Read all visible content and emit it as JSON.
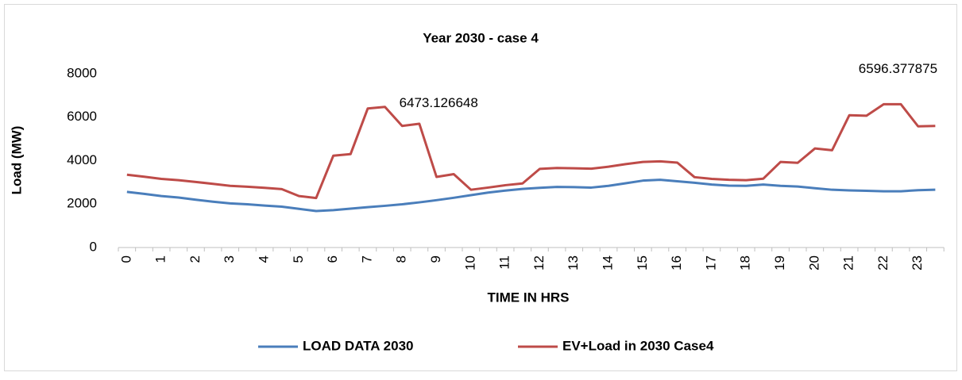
{
  "chart_data": {
    "type": "line",
    "title": "Year 2030 - case 4",
    "x_label": "TIME IN HRS",
    "y_label": "Load (MW)",
    "categories": [
      "0",
      null,
      "1",
      null,
      "2",
      null,
      "3",
      null,
      "4",
      null,
      "5",
      null,
      "6",
      null,
      "7",
      null,
      "8",
      null,
      "9",
      null,
      "10",
      null,
      "11",
      null,
      "12",
      null,
      "13",
      null,
      "14",
      null,
      "15",
      null,
      "16",
      null,
      "17",
      null,
      "18",
      null,
      "19",
      null,
      "20",
      null,
      "21",
      null,
      "22",
      null,
      "23",
      null
    ],
    "series": [
      {
        "name": "LOAD DATA 2030",
        "color": "#4a7ebb",
        "values": [
          2560,
          2470,
          2370,
          2300,
          2200,
          2110,
          2030,
          1990,
          1930,
          1880,
          1780,
          1680,
          1720,
          1790,
          1860,
          1920,
          1990,
          2080,
          2180,
          2290,
          2410,
          2530,
          2620,
          2700,
          2750,
          2790,
          2780,
          2760,
          2840,
          2960,
          3080,
          3120,
          3050,
          2980,
          2900,
          2850,
          2840,
          2900,
          2840,
          2810,
          2730,
          2660,
          2630,
          2610,
          2590,
          2590,
          2640,
          2660
        ]
      },
      {
        "name": "EV+Load in 2030 Case4",
        "color": "#be4b48",
        "values": [
          3350,
          3260,
          3160,
          3100,
          3020,
          2930,
          2840,
          2800,
          2750,
          2690,
          2370,
          2280,
          4230,
          4300,
          6400,
          6473.126648,
          5600,
          5700,
          3250,
          3380,
          2660,
          2760,
          2870,
          2950,
          3620,
          3660,
          3650,
          3630,
          3720,
          3840,
          3940,
          3970,
          3910,
          3240,
          3160,
          3120,
          3100,
          3170,
          3940,
          3900,
          4560,
          4480,
          6090,
          6070,
          6596.377875,
          6596,
          5580,
          5600
        ],
        "value_labels": [
          null,
          null,
          null,
          null,
          null,
          null,
          null,
          null,
          null,
          null,
          null,
          null,
          null,
          null,
          null,
          "6473.126648",
          null,
          null,
          null,
          null,
          null,
          null,
          null,
          null,
          null,
          null,
          null,
          null,
          null,
          null,
          null,
          null,
          null,
          null,
          null,
          null,
          null,
          null,
          null,
          null,
          null,
          null,
          null,
          null,
          "6596.377875",
          null,
          null,
          null
        ]
      }
    ],
    "ylim": [
      0,
      8000
    ],
    "yticks": [
      0,
      2000,
      4000,
      6000,
      8000
    ],
    "grid": false,
    "legend": "bottom"
  }
}
